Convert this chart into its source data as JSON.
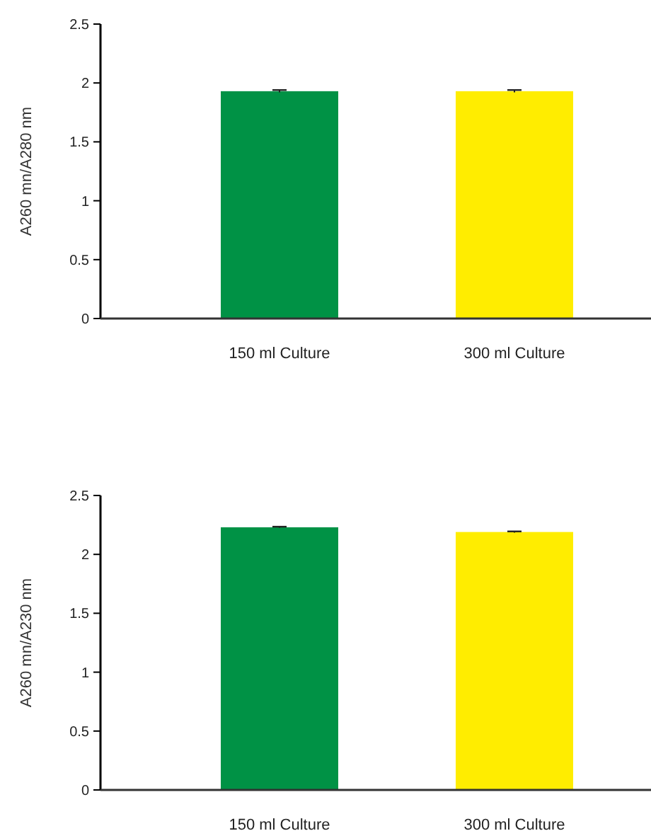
{
  "chart_data": [
    {
      "type": "bar",
      "ylabel": "A260 mn/A280 nm",
      "categories": [
        "150 ml Culture",
        "300 ml Culture"
      ],
      "values": [
        1.93,
        1.93
      ],
      "colors": [
        "#009245",
        "#ffed00"
      ],
      "errors": [
        0.01,
        0.01
      ],
      "ylim": [
        0,
        2.5
      ],
      "yticks": [
        0,
        0.5,
        1,
        1.5,
        2,
        2.5
      ],
      "grid": false
    },
    {
      "type": "bar",
      "ylabel": "A260 mn/A230 nm",
      "categories": [
        "150 ml Culture",
        "300 ml Culture"
      ],
      "values": [
        2.23,
        2.19
      ],
      "colors": [
        "#009245",
        "#ffed00"
      ],
      "errors": [
        0.005,
        0.005
      ],
      "ylim": [
        0,
        2.5
      ],
      "yticks": [
        0,
        0.5,
        1,
        1.5,
        2,
        2.5
      ],
      "grid": false
    }
  ]
}
